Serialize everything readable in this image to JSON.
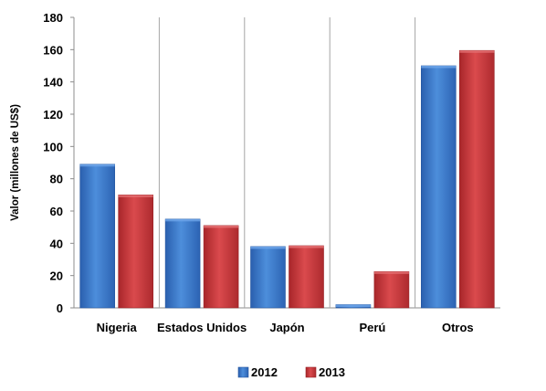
{
  "chart_data": {
    "type": "bar",
    "categories": [
      "Nigeria",
      "Estados Unidos",
      "Japón",
      "Perú",
      "Otros"
    ],
    "series": [
      {
        "name": "2012",
        "values": [
          89,
          55,
          38,
          2,
          150
        ],
        "color": "#3a78c8"
      },
      {
        "name": "2013",
        "values": [
          70,
          51,
          38.5,
          22.5,
          159.5
        ],
        "color": "#c8373a"
      }
    ],
    "ylabel": "Valor (millones de US$)",
    "xlabel": "",
    "title": "",
    "ylim": [
      0,
      180
    ],
    "yticks": [
      "0",
      "20",
      "40",
      "60",
      "80",
      "100",
      "120",
      "140",
      "160",
      "180"
    ],
    "ytick_values": [
      0,
      20,
      40,
      60,
      80,
      100,
      120,
      140,
      160,
      180
    ],
    "legend_position": "bottom-center",
    "grid": false,
    "category_separators": true
  }
}
